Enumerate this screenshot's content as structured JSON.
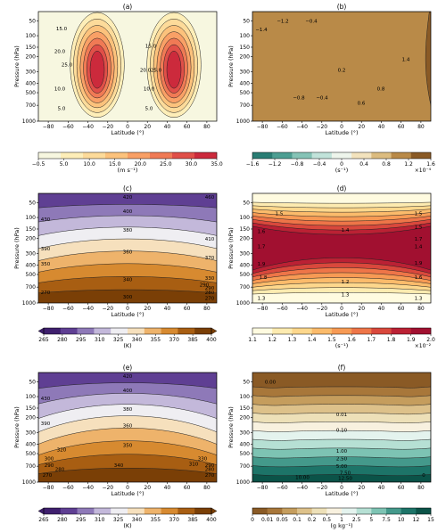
{
  "chart_data": [
    {
      "type": "heatmap",
      "panel": "(a)",
      "xlabel": "Latitude (°)",
      "ylabel": "Pressure (hPa)",
      "xticks": [
        "−80",
        "−60",
        "−40",
        "−20",
        "0",
        "20",
        "40",
        "60",
        "80"
      ],
      "yticks": [
        "50",
        "100",
        "150",
        "200",
        "300",
        "400",
        "500",
        "700",
        "1000"
      ],
      "levels": [
        "−0.5",
        "5.0",
        "10.0",
        "15.0",
        "20.0",
        "25.0",
        "30.0",
        "35.0"
      ],
      "units": "(m s⁻¹)",
      "contour_labels": [
        "15.0",
        "20.0",
        "25.0",
        "10.0",
        "5.0",
        "15.0",
        "20.0",
        "25.0",
        "10.0",
        "5.0"
      ],
      "colors": [
        "#f7f7e0",
        "#feeeb8",
        "#fddb9a",
        "#fcc27c",
        "#f9a066",
        "#f07a55",
        "#e04f48",
        "#cc2a3c"
      ]
    },
    {
      "type": "heatmap",
      "panel": "(b)",
      "xlabel": "Latitude (°)",
      "ylabel": "Pressure (hPa)",
      "xticks": [
        "−80",
        "−60",
        "−40",
        "−20",
        "0",
        "20",
        "40",
        "60",
        "80"
      ],
      "yticks": [
        "50",
        "100",
        "150",
        "200",
        "300",
        "400",
        "500",
        "700",
        "1000"
      ],
      "levels": [
        "−1.6",
        "−1.2",
        "−0.8",
        "−0.4",
        "0",
        "0.4",
        "0.8",
        "1.2",
        "1.6"
      ],
      "units": "(s⁻¹)",
      "scale": "×10⁻⁴",
      "contour_labels": [
        "−1.4",
        "−1.2",
        "−0.4",
        "−0.8",
        "−0.4",
        "0.2",
        "0.6",
        "0.8",
        "1.4"
      ],
      "colors": [
        "#2a7d74",
        "#4d9e92",
        "#85c3b6",
        "#c1e3da",
        "#eef5ec",
        "#f3e3bd",
        "#dcbc80",
        "#b98a48",
        "#8a5a25"
      ]
    },
    {
      "type": "heatmap",
      "panel": "(c)",
      "xlabel": "Latitude (°)",
      "ylabel": "Pressure (hPa)",
      "xticks": [
        "−80",
        "−60",
        "−40",
        "−20",
        "0",
        "20",
        "40",
        "60",
        "80"
      ],
      "yticks": [
        "50",
        "100",
        "150",
        "200",
        "300",
        "400",
        "500",
        "700",
        "1000"
      ],
      "levels": [
        "265",
        "280",
        "295",
        "310",
        "325",
        "340",
        "355",
        "370",
        "385",
        "400"
      ],
      "units": "(K)",
      "contour_labels": [
        "420",
        "400",
        "380",
        "360",
        "340",
        "300",
        "430",
        "390",
        "350",
        "290",
        "270",
        "460",
        "410",
        "370",
        "330",
        "290",
        "280",
        "270"
      ],
      "colors": [
        "#3f1f6e",
        "#5f3f93",
        "#8e79b8",
        "#c3b8da",
        "#efeef2",
        "#f6e0bd",
        "#eeb36b",
        "#d78a30",
        "#a85e12",
        "#7a3f06"
      ]
    },
    {
      "type": "heatmap",
      "panel": "(d)",
      "xlabel": "Latitude (°)",
      "ylabel": "Pressure (hPa)",
      "xticks": [
        "−80",
        "−60",
        "−40",
        "−20",
        "0",
        "20",
        "40",
        "60",
        "80"
      ],
      "yticks": [
        "50",
        "100",
        "150",
        "200",
        "300",
        "400",
        "500",
        "700",
        "1000"
      ],
      "levels": [
        "1.1",
        "1.2",
        "1.3",
        "1.4",
        "1.5",
        "1.6",
        "1.7",
        "1.8",
        "1.9",
        "2.0"
      ],
      "units": "(s⁻¹)",
      "scale": "×10⁻²",
      "contour_labels": [
        "1.4",
        "1.5",
        "1.6",
        "1.5",
        "1.7",
        "1.4",
        "1.9",
        "1.2",
        "1.8",
        "1.3",
        "1.3",
        "1.5",
        "1.7",
        "1.9",
        "1.6",
        "1.3"
      ],
      "colors": [
        "#fffbe0",
        "#fdebb0",
        "#fdd78c",
        "#fbbb6b",
        "#f79a54",
        "#ee7548",
        "#d9483c",
        "#bb2134",
        "#a11030"
      ]
    },
    {
      "type": "heatmap",
      "panel": "(e)",
      "xlabel": "Latitude (°)",
      "ylabel": "Pressure (hPa)",
      "xticks": [
        "−80",
        "−60",
        "−40",
        "−20",
        "0",
        "20",
        "40",
        "60",
        "80"
      ],
      "yticks": [
        "50",
        "100",
        "150",
        "200",
        "300",
        "400",
        "500",
        "700",
        "1000"
      ],
      "levels": [
        "265",
        "280",
        "295",
        "310",
        "325",
        "340",
        "355",
        "370",
        "385",
        "400"
      ],
      "units": "(K)",
      "contour_labels": [
        "420",
        "400",
        "380",
        "360",
        "350",
        "430",
        "390",
        "320",
        "300",
        "290",
        "280",
        "270",
        "340",
        "330",
        "310",
        "290",
        "280",
        "270"
      ],
      "colors": [
        "#3f1f6e",
        "#5f3f93",
        "#8e79b8",
        "#c3b8da",
        "#efeef2",
        "#f6e0bd",
        "#eeb36b",
        "#d78a30",
        "#a85e12",
        "#7a3f06"
      ]
    },
    {
      "type": "heatmap",
      "panel": "(f)",
      "xlabel": "Latitude (°)",
      "ylabel": "Pressure (hPa)",
      "xticks": [
        "−80",
        "−60",
        "−40",
        "−20",
        "0",
        "20",
        "40",
        "60",
        "80"
      ],
      "yticks": [
        "50",
        "100",
        "150",
        "200",
        "300",
        "400",
        "500",
        "700",
        "1000"
      ],
      "levels": [
        "0",
        "0.01",
        "0.05",
        "0.1",
        "0.2",
        "0.5",
        "1",
        "2.5",
        "5",
        "7.5",
        "10",
        "12",
        "15"
      ],
      "units": "(g kg⁻¹)",
      "contour_labels": [
        "0.00",
        "0.01",
        "0.10",
        "1.00",
        "2.50",
        "5.00",
        "7.50",
        "10.00",
        "12.50",
        "0"
      ],
      "colors": [
        "#8a5a25",
        "#a8773a",
        "#c59d5d",
        "#ddc18a",
        "#ede0b8",
        "#f8f1df",
        "#e4f3ee",
        "#b6e0d4",
        "#7dc3b3",
        "#44998b",
        "#1d7468",
        "#0b5348"
      ]
    }
  ]
}
